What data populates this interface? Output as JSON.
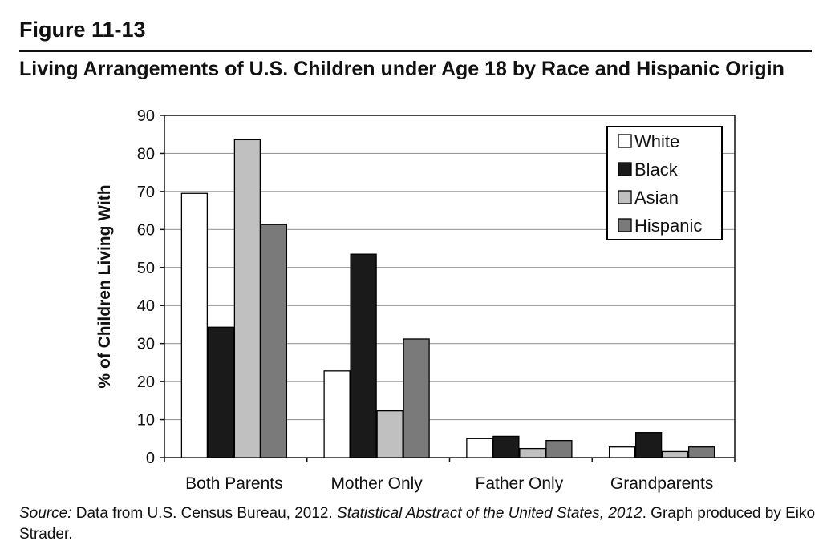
{
  "figure": {
    "label": "Figure 11-13",
    "title": "Living Arrangements of U.S. Children under Age 18 by Race and Hispanic Origin"
  },
  "source": {
    "prefix": "Source:",
    "text1": " Data from U.S. Census Bureau, 2012. ",
    "publication": "Statistical Abstract of the United States, 2012",
    "text2": ". Graph produced by Eiko Strader."
  },
  "colors": {
    "white": "#ffffff",
    "black": "#1a1a1a",
    "asian": "#c0c0c0",
    "hispanic": "#7a7a7a",
    "grid": "#9a9a9a",
    "axis": "#111111"
  },
  "chart_data": {
    "type": "bar",
    "title": "",
    "xlabel": "",
    "ylabel": "% of Children Living With",
    "ylim": [
      0,
      90
    ],
    "yticks": [
      0,
      10,
      20,
      30,
      40,
      50,
      60,
      70,
      80,
      90
    ],
    "grid": true,
    "legend_position": "top-right",
    "categories": [
      "Both Parents",
      "Mother Only",
      "Father Only",
      "Grandparents"
    ],
    "series": [
      {
        "name": "White",
        "color": "#ffffff",
        "values": [
          69.5,
          22.8,
          5.0,
          2.8
        ]
      },
      {
        "name": "Black",
        "color": "#1a1a1a",
        "values": [
          34.3,
          53.5,
          5.6,
          6.6
        ]
      },
      {
        "name": "Asian",
        "color": "#c0c0c0",
        "values": [
          83.6,
          12.3,
          2.4,
          1.6
        ]
      },
      {
        "name": "Hispanic",
        "color": "#7a7a7a",
        "values": [
          61.3,
          31.2,
          4.5,
          2.8
        ]
      }
    ]
  }
}
